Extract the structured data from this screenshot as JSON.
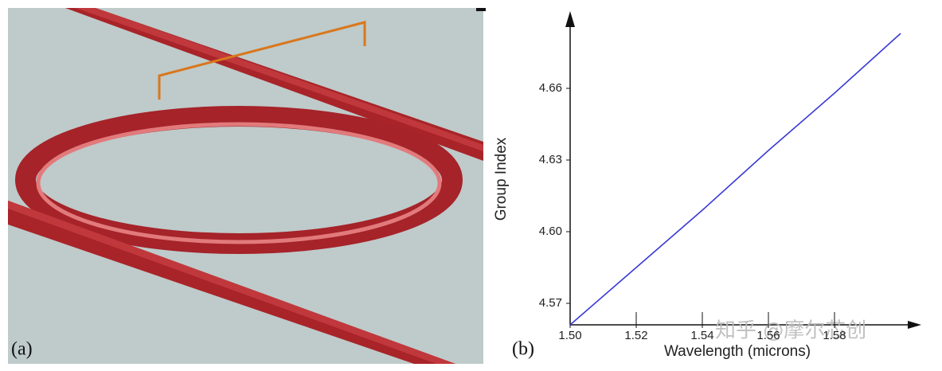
{
  "panel_a": {
    "label": "(a)"
  },
  "panel_b": {
    "label": "(b)"
  },
  "watermark": "知乎 @摩尔芯创",
  "chart_data": {
    "type": "line",
    "xlabel": "Wavelength (microns)",
    "ylabel": "Group Index",
    "x": [
      1.5,
      1.52,
      1.54,
      1.56,
      1.58,
      1.6
    ],
    "values": [
      4.561,
      4.585,
      4.609,
      4.634,
      4.658,
      4.683
    ],
    "color": "#3a3ad6",
    "xlim": [
      1.5,
      1.6
    ],
    "ylim": [
      4.561,
      4.69
    ],
    "xticks": [
      {
        "value": 1.5,
        "label": "1.50"
      },
      1.52,
      1.54,
      1.56,
      1.58
    ],
    "yticks": [
      4.57,
      {
        "value": 4.6,
        "label": "4.60"
      },
      4.63,
      4.66
    ],
    "grid": false
  }
}
